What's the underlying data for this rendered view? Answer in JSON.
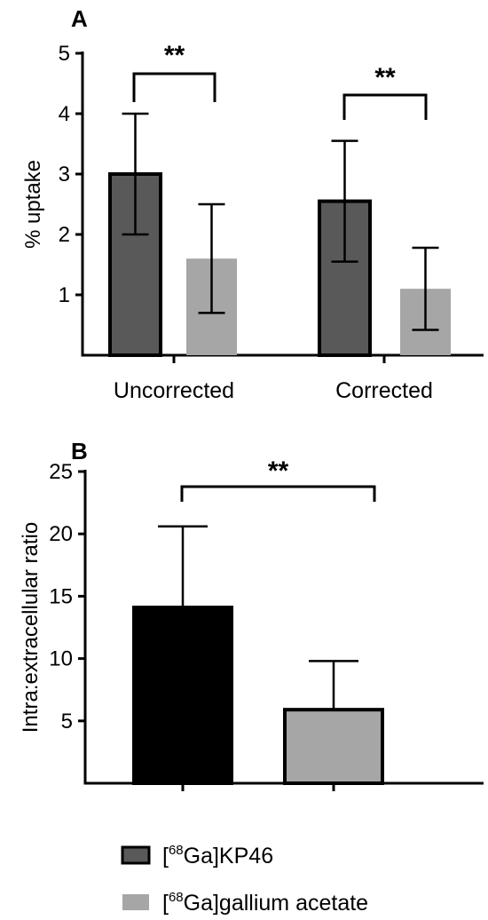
{
  "colors": {
    "kp46": "#595959",
    "kp46_panel_b": "#000000",
    "acetate": "#a6a6a6",
    "outline": "#000000",
    "legend_kp46": "#595959",
    "legend_acetate": "#a6a6a6"
  },
  "legend": {
    "items": [
      {
        "pre": "[",
        "sup": "68",
        "post": "Ga]KP46",
        "color": "#595959",
        "border": true
      },
      {
        "pre": "[",
        "sup": "68",
        "post": "Ga]gallium acetate",
        "color": "#a6a6a6",
        "border": false
      }
    ]
  },
  "chart_data": [
    {
      "panel": "A",
      "type": "bar",
      "ylabel": "% uptake",
      "xlabel": "",
      "ylim": [
        0,
        5
      ],
      "yticks": [
        1,
        2,
        3,
        4,
        5
      ],
      "categories": [
        "Uncorrected",
        "Corrected"
      ],
      "series": [
        {
          "name": "[68Ga]KP46",
          "values": [
            3.0,
            2.55
          ],
          "error": [
            1.0,
            1.0
          ]
        },
        {
          "name": "[68Ga]gallium acetate",
          "values": [
            1.6,
            1.1
          ],
          "error": [
            0.9,
            0.68
          ]
        }
      ],
      "significance": [
        {
          "category": "Uncorrected",
          "label": "**"
        },
        {
          "category": "Corrected",
          "label": "**"
        }
      ]
    },
    {
      "panel": "B",
      "type": "bar",
      "ylabel": "Intra:extracellular ratio",
      "xlabel": "",
      "ylim": [
        0,
        25
      ],
      "yticks": [
        5,
        10,
        15,
        20,
        25
      ],
      "categories": [
        "[68Ga]KP46",
        "[68Ga]gallium acetate"
      ],
      "values": [
        14.1,
        5.9
      ],
      "error": [
        6.5,
        3.9
      ],
      "significance": [
        {
          "between": [
            0,
            1
          ],
          "label": "**"
        }
      ]
    }
  ]
}
